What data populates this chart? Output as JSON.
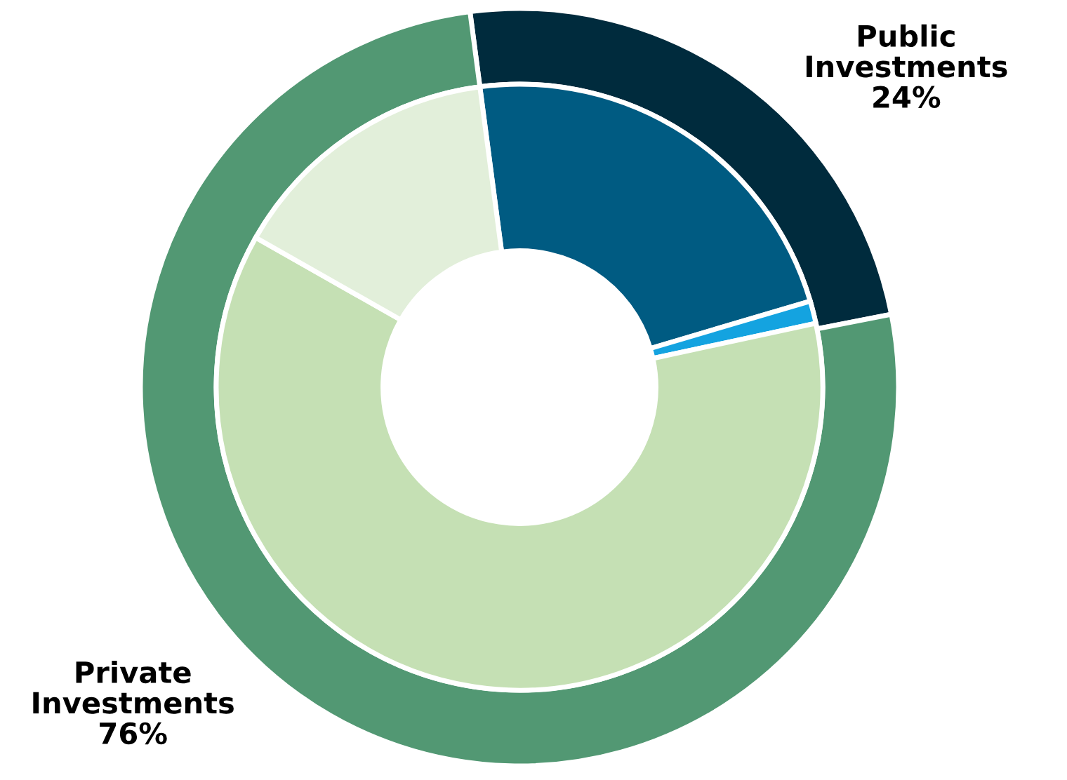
{
  "chart_data": {
    "type": "donut",
    "categories": [
      "Public Investments",
      "Private Investments",
      null,
      null,
      null,
      null
    ],
    "series": [
      {
        "values": [
          24,
          76,
          null,
          null,
          null,
          null
        ],
        "colors": [
          "#002b3d",
          "#529873",
          null,
          null,
          null,
          null
        ],
        "value_labels": [
          "24%",
          "76%",
          null,
          null,
          null,
          null
        ]
      },
      {
        "values": [
          null,
          null,
          22.5,
          1.2,
          61.6,
          14.7
        ],
        "colors": [
          null,
          null,
          "#005b82",
          "#14a3e0",
          "#c5e0b4",
          "#e2efda"
        ]
      }
    ]
  }
}
